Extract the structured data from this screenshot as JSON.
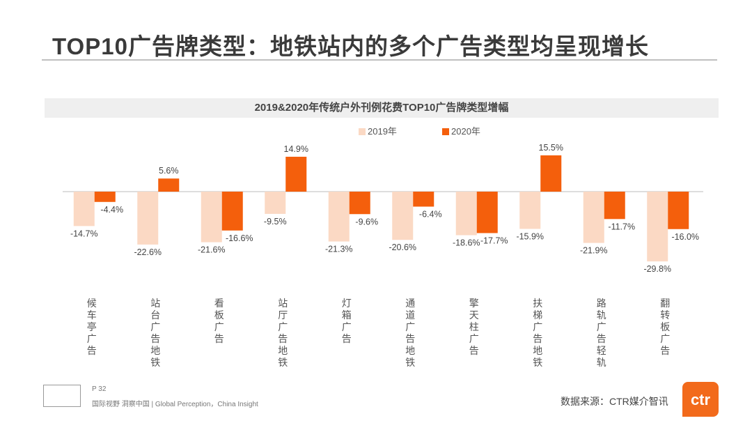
{
  "header": {
    "title": "TOP10广告牌类型：地铁站内的多个广告类型均呈现增长"
  },
  "footer": {
    "page": "P 32",
    "slogan": "国际视野 洞察中国 | Global Perception，China Insight",
    "source": "数据来源：CTR媒介智讯",
    "brand": "ctr"
  },
  "chart_data": {
    "type": "bar",
    "title": "2019&2020年传统户外刊例花费TOP10广告牌类型增幅",
    "categories": [
      "候车亭广告",
      "站台广告地铁",
      "看板广告",
      "站厅广告地铁",
      "灯箱广告",
      "通道广告地铁",
      "擎天柱广告",
      "扶梯广告地铁",
      "路轨广告轻轨",
      "翻转板广告"
    ],
    "series": [
      {
        "name": "2019年",
        "color": "#fbd9c4",
        "values": [
          -14.7,
          -22.6,
          -21.6,
          -9.5,
          -21.3,
          -20.6,
          -18.6,
          -15.9,
          -21.9,
          -29.8
        ]
      },
      {
        "name": "2020年",
        "color": "#f45f0c",
        "values": [
          -4.4,
          5.6,
          -16.6,
          14.9,
          -9.6,
          -6.4,
          -17.7,
          15.5,
          -11.7,
          -16.0
        ]
      }
    ],
    "unit": "%",
    "legend": "top-center",
    "grid": false
  }
}
